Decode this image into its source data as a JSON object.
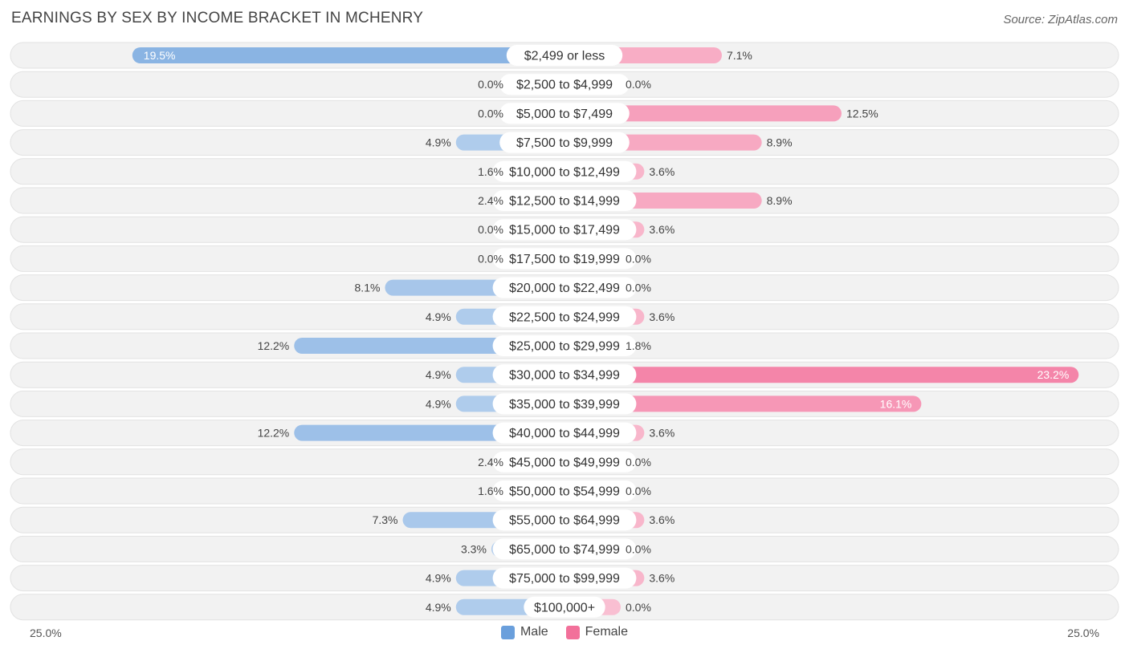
{
  "title": "EARNINGS BY SEX BY INCOME BRACKET IN MCHENRY",
  "source": "Source: ZipAtlas.com",
  "chart_data": {
    "type": "bar",
    "orientation": "horizontal-diverging",
    "title": "EARNINGS BY SEX BY INCOME BRACKET IN MCHENRY",
    "categories": [
      "$2,499 or less",
      "$2,500 to $4,999",
      "$5,000 to $7,499",
      "$7,500 to $9,999",
      "$10,000 to $12,499",
      "$12,500 to $14,999",
      "$15,000 to $17,499",
      "$17,500 to $19,999",
      "$20,000 to $22,499",
      "$22,500 to $24,999",
      "$25,000 to $29,999",
      "$30,000 to $34,999",
      "$35,000 to $39,999",
      "$40,000 to $44,999",
      "$45,000 to $49,999",
      "$50,000 to $54,999",
      "$55,000 to $64,999",
      "$65,000 to $74,999",
      "$75,000 to $99,999",
      "$100,000+"
    ],
    "series": [
      {
        "name": "Male",
        "color": "#6a9fdc",
        "values": [
          19.5,
          0.0,
          0.0,
          4.9,
          1.6,
          2.4,
          0.0,
          0.0,
          8.1,
          4.9,
          12.2,
          4.9,
          4.9,
          12.2,
          2.4,
          1.6,
          7.3,
          3.3,
          4.9,
          4.9
        ]
      },
      {
        "name": "Female",
        "color": "#f2709a",
        "values": [
          7.1,
          0.0,
          12.5,
          8.9,
          3.6,
          8.9,
          3.6,
          0.0,
          0.0,
          3.6,
          1.8,
          23.2,
          16.1,
          3.6,
          0.0,
          0.0,
          3.6,
          0.0,
          3.6,
          0.0
        ]
      }
    ],
    "value_labels": {
      "male": [
        "19.5%",
        "0.0%",
        "0.0%",
        "4.9%",
        "1.6%",
        "2.4%",
        "0.0%",
        "0.0%",
        "8.1%",
        "4.9%",
        "12.2%",
        "4.9%",
        "4.9%",
        "12.2%",
        "2.4%",
        "1.6%",
        "7.3%",
        "3.3%",
        "4.9%",
        "4.9%"
      ],
      "female": [
        "7.1%",
        "0.0%",
        "12.5%",
        "8.9%",
        "3.6%",
        "8.9%",
        "3.6%",
        "0.0%",
        "0.0%",
        "3.6%",
        "1.8%",
        "23.2%",
        "16.1%",
        "3.6%",
        "0.0%",
        "0.0%",
        "3.6%",
        "0.0%",
        "3.6%",
        "0.0%"
      ]
    },
    "xlim": [
      -25,
      25
    ],
    "axis_labels": {
      "left": "25.0%",
      "right": "25.0%"
    },
    "legend": [
      "Male",
      "Female"
    ],
    "legend_position": "bottom-center"
  }
}
